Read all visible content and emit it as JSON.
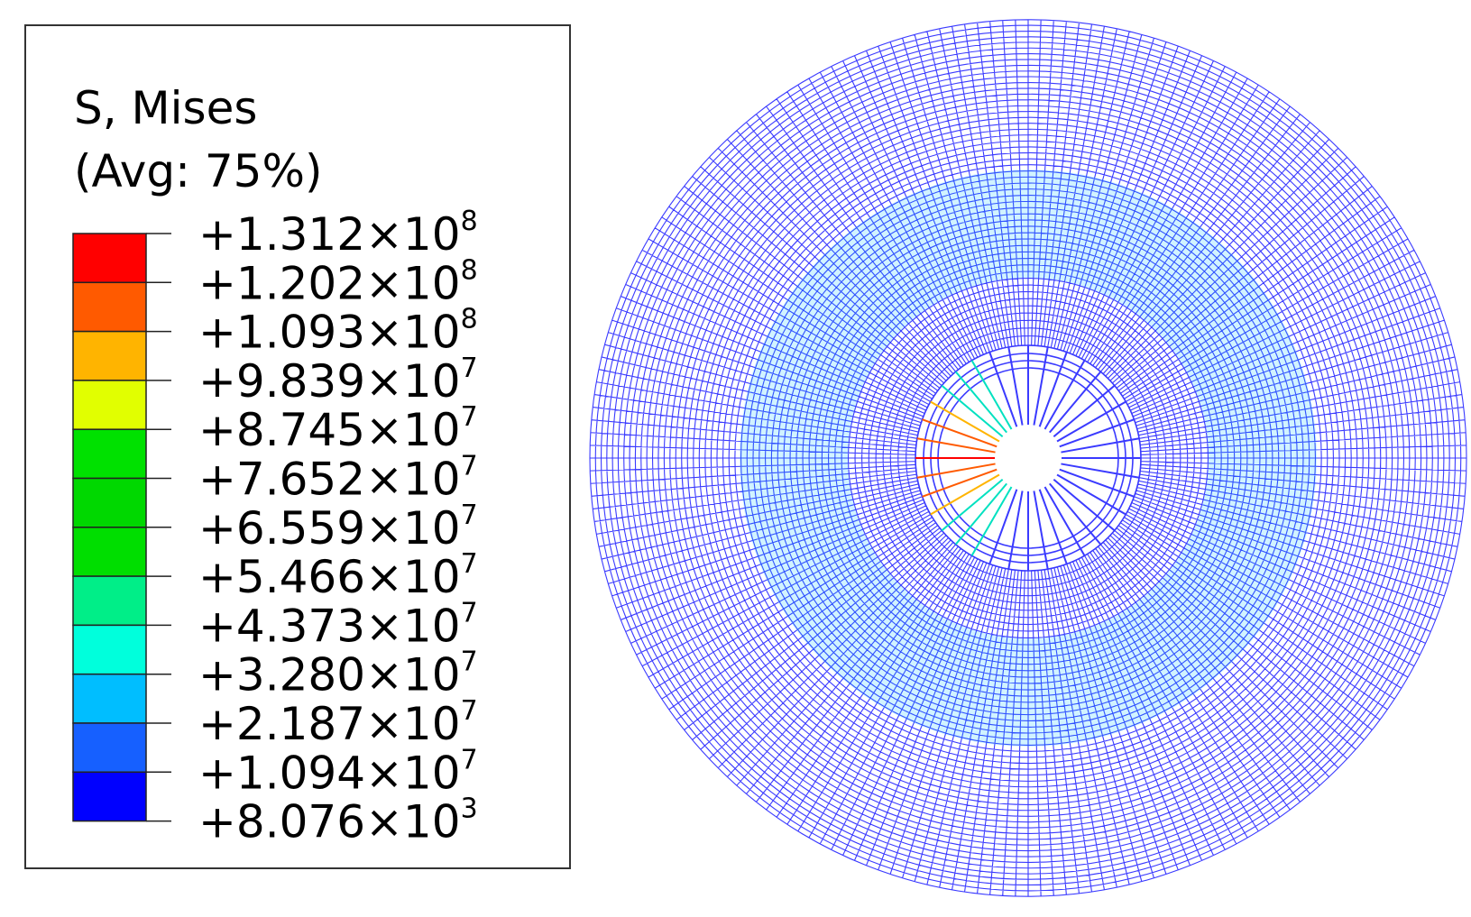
{
  "legend": {
    "title": "S, Mises",
    "subtitle": "(Avg: 75%)",
    "colors": [
      "#ff0000",
      "#ff5a00",
      "#ffb400",
      "#e1ff00",
      "#00e100",
      "#00d800",
      "#00de00",
      "#00ee88",
      "#00ffdc",
      "#00beff",
      "#1660ff",
      "#0000ff"
    ],
    "labels": [
      {
        "mantissa": "+1.312×10",
        "exponent": "8"
      },
      {
        "mantissa": "+1.202×10",
        "exponent": "8"
      },
      {
        "mantissa": "+1.093×10",
        "exponent": "8"
      },
      {
        "mantissa": "+9.839×10",
        "exponent": "7"
      },
      {
        "mantissa": "+8.745×10",
        "exponent": "7"
      },
      {
        "mantissa": "+7.652×10",
        "exponent": "7"
      },
      {
        "mantissa": "+6.559×10",
        "exponent": "7"
      },
      {
        "mantissa": "+5.466×10",
        "exponent": "7"
      },
      {
        "mantissa": "+4.373×10",
        "exponent": "7"
      },
      {
        "mantissa": "+3.280×10",
        "exponent": "7"
      },
      {
        "mantissa": "+2.187×10",
        "exponent": "7"
      },
      {
        "mantissa": "+1.094×10",
        "exponent": "7"
      },
      {
        "mantissa": "+8.076×10",
        "exponent": "3"
      }
    ]
  }
}
